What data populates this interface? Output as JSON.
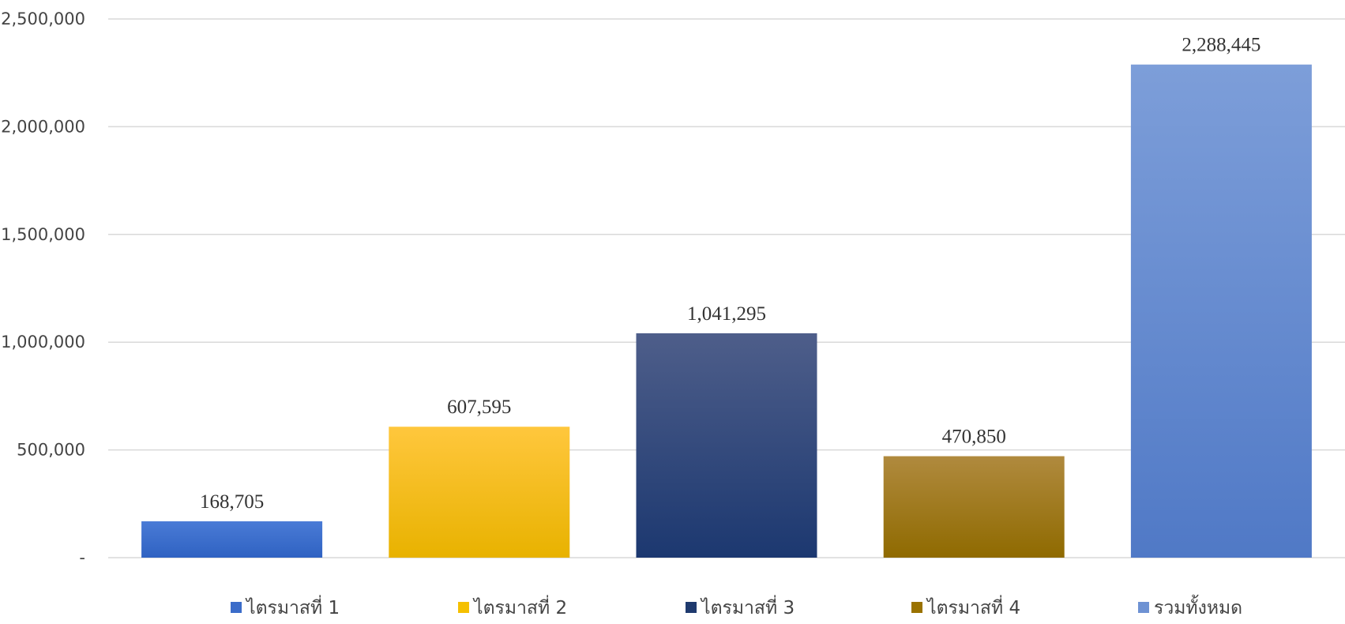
{
  "chart_data": {
    "type": "bar",
    "title": "",
    "xlabel": "",
    "ylabel": "",
    "ylim": [
      0,
      2500000
    ],
    "y_ticks": [
      {
        "value": 0,
        "label": "-"
      },
      {
        "value": 500000,
        "label": "500,000"
      },
      {
        "value": 1000000,
        "label": "1,000,000"
      },
      {
        "value": 1500000,
        "label": "1,500,000"
      },
      {
        "value": 2000000,
        "label": "2,000,000"
      },
      {
        "value": 2500000,
        "label": "2,500,000"
      }
    ],
    "grid": true,
    "legend_position": "bottom",
    "categories": [
      "ไตรมาสที่ 1",
      "ไตรมาสที่ 2",
      "ไตรมาสที่ 3",
      "ไตรมาสที่ 4",
      "รวมทั้งหมด"
    ],
    "values": [
      168705,
      607595,
      1041295,
      470850,
      2288445
    ],
    "data_labels": [
      "168,705",
      "607,595",
      "1,041,295",
      "470,850",
      "2,288,445"
    ],
    "colors": [
      {
        "top": "#4a7bd6",
        "bottom": "#2f62c2"
      },
      {
        "top": "#ffc73d",
        "bottom": "#e8b200"
      },
      {
        "top": "#4e5e8a",
        "bottom": "#1c3870"
      },
      {
        "top": "#b08a3e",
        "bottom": "#8f6a00"
      },
      {
        "top": "#7d9ed9",
        "bottom": "#5079c6"
      }
    ],
    "legend_colors": [
      "#3b6cc9",
      "#f5c000",
      "#1f3a6e",
      "#9a7200",
      "#6e92d3"
    ]
  }
}
